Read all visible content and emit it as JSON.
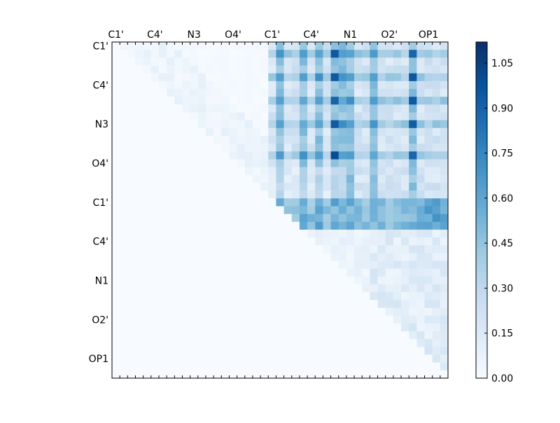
{
  "chart_data": {
    "type": "heatmap",
    "title": "",
    "xlabel": "",
    "ylabel": "",
    "x_tick_labels": [
      "C1'",
      "C4'",
      "N3",
      "O4'",
      "C1'",
      "C4'",
      "N1",
      "O2'",
      "OP1"
    ],
    "y_tick_labels": [
      "C1'",
      "C4'",
      "N3",
      "O4'",
      "C1'",
      "C4'",
      "N1",
      "O2'",
      "OP1"
    ],
    "size": 43,
    "colormap": "Blues",
    "colorbar": {
      "min": 0.0,
      "max": 1.12,
      "ticks": [
        "0.00",
        "0.15",
        "0.30",
        "0.45",
        "0.60",
        "0.75",
        "0.90",
        "1.05"
      ],
      "tick_values": [
        0.0,
        0.15,
        0.3,
        0.45,
        0.6,
        0.75,
        0.9,
        1.05
      ]
    },
    "description_of_values": "Upper-triangular matrix; values read approximately from colour. Row/column indices 0-42; tick labels every 5 cells starting at index 0.",
    "block_boundary": 20,
    "columns_dark": [
      21,
      24,
      26,
      28,
      29,
      30,
      33,
      38
    ],
    "columns_very_dark": [
      28,
      38
    ],
    "rows_dark": [
      1,
      4,
      7,
      10,
      14
    ],
    "lower_block_rows": [
      20,
      21,
      22,
      23
    ]
  }
}
